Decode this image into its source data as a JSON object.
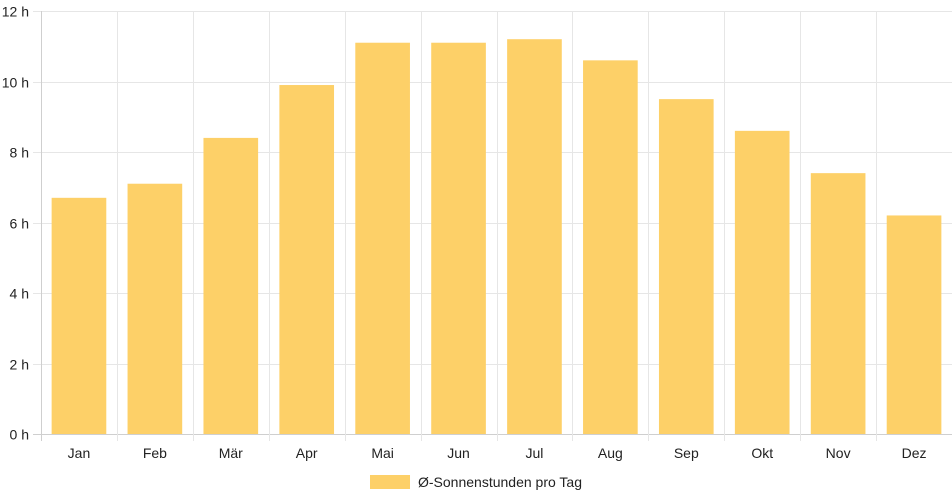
{
  "chart_data": {
    "type": "bar",
    "categories": [
      "Jan",
      "Feb",
      "Mär",
      "Apr",
      "Mai",
      "Jun",
      "Jul",
      "Aug",
      "Sep",
      "Okt",
      "Nov",
      "Dez"
    ],
    "series": [
      {
        "name": "Ø-Sonnenstunden pro Tag",
        "values": [
          6.7,
          7.1,
          8.4,
          9.9,
          11.1,
          11.1,
          11.2,
          10.6,
          9.5,
          8.6,
          7.4,
          6.2
        ]
      }
    ],
    "y_ticks": [
      "0 h",
      "2 h",
      "4 h",
      "6 h",
      "8 h",
      "10 h",
      "12 h"
    ],
    "ylim": [
      0,
      12
    ],
    "y_unit": "h",
    "grid": true,
    "legend_position": "bottom-center",
    "colors": {
      "bar": "#fdd068",
      "grid": "#e6e6e6",
      "text": "#222222"
    }
  }
}
